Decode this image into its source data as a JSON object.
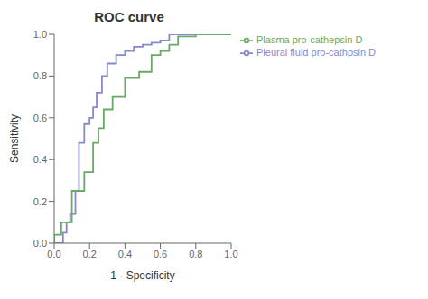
{
  "chart_data": {
    "type": "line",
    "title": "ROC curve",
    "xlabel": "1 - Specificity",
    "ylabel": "Sensitivity",
    "xlim": [
      0.0,
      1.0
    ],
    "ylim": [
      0.0,
      1.0
    ],
    "xticks": [
      {
        "value": 0.0,
        "label": "0.0"
      },
      0.2,
      0.4,
      0.6,
      0.8,
      {
        "value": 1.0,
        "label": "1.0"
      }
    ],
    "yticks": [
      {
        "value": 0.0,
        "label": "0.0"
      },
      0.2,
      0.4,
      0.6,
      0.8,
      {
        "value": 1.0,
        "label": "1.0"
      }
    ],
    "grid": false,
    "legend": "right",
    "series": [
      {
        "name": "Pleural fluid pro-cathpsin D",
        "color": "#8888cc",
        "x": [
          0.0,
          0.05,
          0.05,
          0.07,
          0.07,
          0.09,
          0.09,
          0.12,
          0.12,
          0.14,
          0.14,
          0.17,
          0.17,
          0.2,
          0.2,
          0.22,
          0.22,
          0.24,
          0.24,
          0.27,
          0.27,
          0.3,
          0.3,
          0.35,
          0.35,
          0.4,
          0.4,
          0.45,
          0.45,
          0.5,
          0.5,
          0.55,
          0.55,
          0.6,
          0.6,
          0.65,
          0.65,
          0.75,
          0.75,
          1.0
        ],
        "values": [
          0.0,
          0.0,
          0.05,
          0.05,
          0.1,
          0.1,
          0.14,
          0.14,
          0.25,
          0.25,
          0.48,
          0.48,
          0.57,
          0.57,
          0.6,
          0.6,
          0.65,
          0.65,
          0.72,
          0.72,
          0.8,
          0.8,
          0.86,
          0.86,
          0.9,
          0.9,
          0.92,
          0.92,
          0.94,
          0.94,
          0.95,
          0.95,
          0.96,
          0.96,
          0.97,
          0.97,
          1.0,
          1.0,
          1.0,
          1.0
        ]
      },
      {
        "name": "Plasma pro-cathepsin D",
        "color": "#66aa66",
        "x": [
          0.0,
          0.0,
          0.04,
          0.04,
          0.1,
          0.1,
          0.17,
          0.17,
          0.22,
          0.22,
          0.25,
          0.25,
          0.28,
          0.28,
          0.33,
          0.33,
          0.4,
          0.4,
          0.48,
          0.48,
          0.55,
          0.55,
          0.6,
          0.6,
          0.65,
          0.65,
          0.7,
          0.7,
          0.8,
          0.8,
          1.0
        ],
        "values": [
          0.0,
          0.04,
          0.04,
          0.1,
          0.1,
          0.25,
          0.25,
          0.34,
          0.34,
          0.48,
          0.48,
          0.55,
          0.55,
          0.64,
          0.64,
          0.7,
          0.7,
          0.79,
          0.79,
          0.82,
          0.82,
          0.9,
          0.9,
          0.92,
          0.92,
          0.95,
          0.95,
          0.99,
          0.99,
          1.0,
          1.0
        ]
      }
    ]
  }
}
